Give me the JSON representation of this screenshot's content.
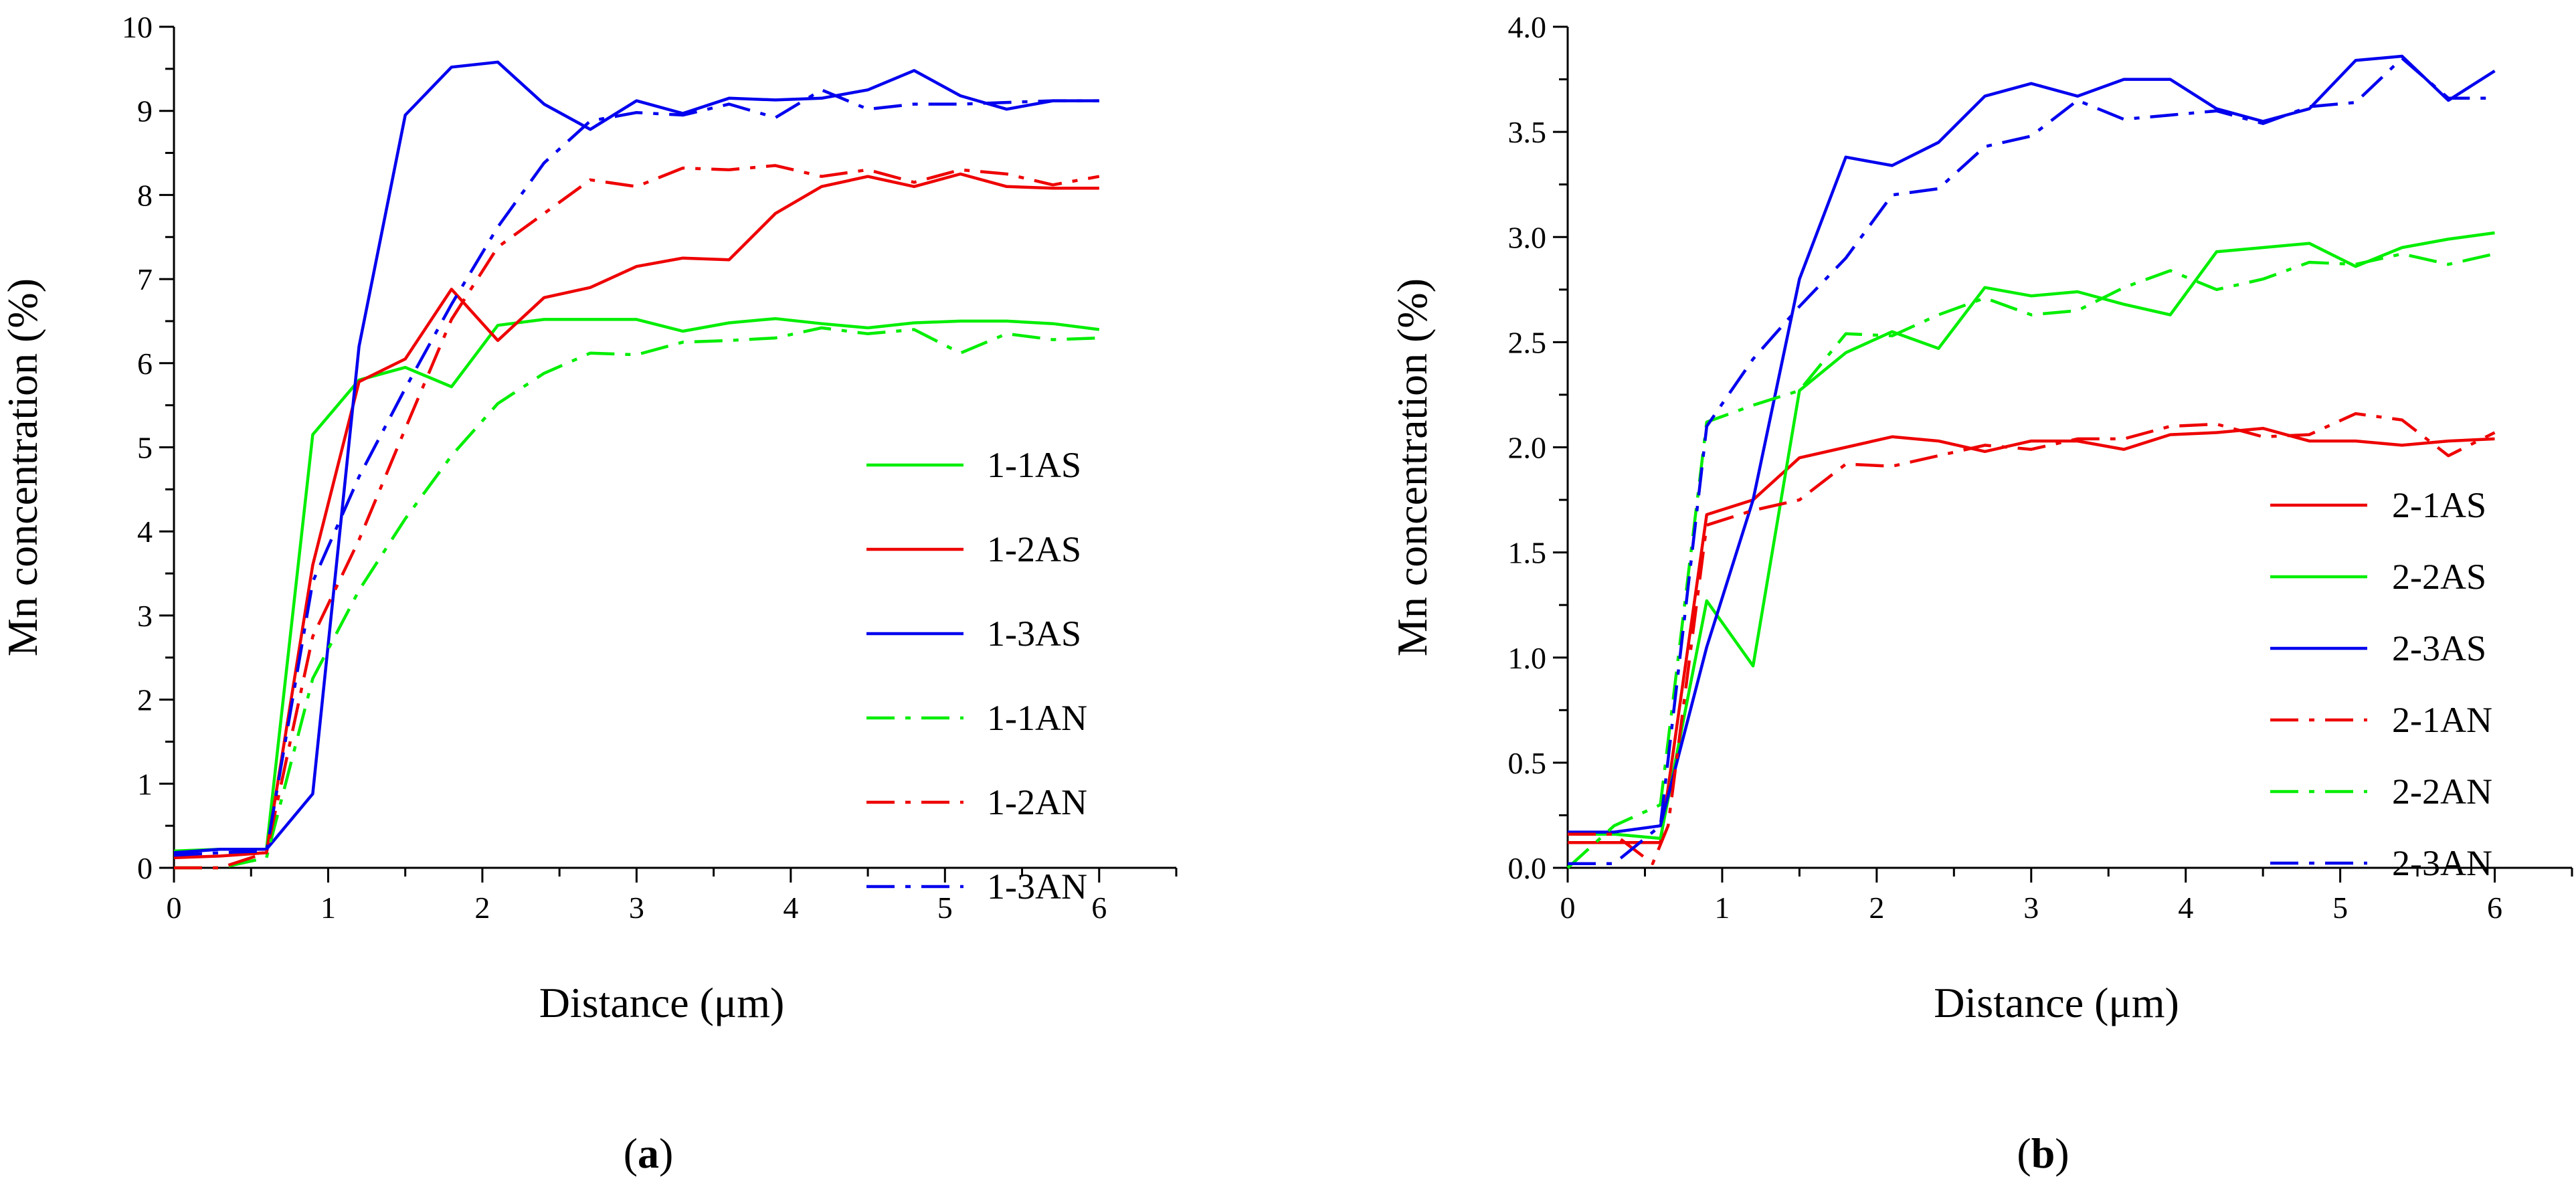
{
  "chart_data": [
    {
      "type": "line",
      "panel_label": {
        "open": "(",
        "letter": "a",
        "close": ")"
      },
      "xlabel": "Distance (μm)",
      "ylabel": "Mn concentration  (%)",
      "xlim": [
        0,
        6.5
      ],
      "ylim": [
        0,
        10
      ],
      "x_major_ticks": [
        0,
        1,
        2,
        3,
        4,
        5,
        6
      ],
      "x_minor_ticks": [
        0.5,
        1.5,
        2.5,
        3.5,
        4.5,
        5.5,
        6.5
      ],
      "y_major_ticks": [
        0,
        1,
        2,
        3,
        4,
        5,
        6,
        7,
        8,
        9,
        10
      ],
      "y_minor_ticks": [
        0.5,
        1.5,
        2.5,
        3.5,
        4.5,
        5.5,
        6.5,
        7.5,
        8.5,
        9.5
      ],
      "grid": false,
      "legend_position": "lower-right",
      "series": [
        {
          "name": "1-1AS",
          "color": "#00ee00",
          "dash": "solid",
          "x": [
            0,
            0.3,
            0.6,
            0.9,
            1.2,
            1.5,
            1.8,
            2.1,
            2.4,
            2.7,
            3.0,
            3.3,
            3.6,
            3.9,
            4.2,
            4.5,
            4.8,
            5.1,
            5.4,
            5.7,
            6.0
          ],
          "values": [
            0.2,
            0.22,
            0.22,
            5.15,
            5.8,
            5.95,
            5.72,
            6.45,
            6.52,
            6.52,
            6.52,
            6.38,
            6.48,
            6.53,
            6.47,
            6.42,
            6.48,
            6.5,
            6.5,
            6.47,
            6.4
          ]
        },
        {
          "name": "1-2AS",
          "color": "#ee0000",
          "dash": "solid",
          "x": [
            0,
            0.3,
            0.6,
            0.9,
            1.2,
            1.5,
            1.8,
            2.1,
            2.4,
            2.7,
            3.0,
            3.3,
            3.6,
            3.9,
            4.2,
            4.5,
            4.8,
            5.1,
            5.4,
            5.7,
            6.0
          ],
          "values": [
            0.12,
            0.14,
            0.18,
            3.6,
            5.78,
            6.05,
            6.88,
            6.27,
            6.78,
            6.9,
            7.15,
            7.25,
            7.23,
            7.78,
            8.1,
            8.22,
            8.1,
            8.25,
            8.1,
            8.08,
            8.08
          ]
        },
        {
          "name": "1-3AS",
          "color": "#0000ee",
          "dash": "solid",
          "x": [
            0,
            0.3,
            0.6,
            0.9,
            1.2,
            1.5,
            1.8,
            2.1,
            2.4,
            2.7,
            3.0,
            3.3,
            3.6,
            3.9,
            4.2,
            4.5,
            4.8,
            5.1,
            5.4,
            5.7,
            6.0
          ],
          "values": [
            0.18,
            0.22,
            0.22,
            0.88,
            6.2,
            8.95,
            9.52,
            9.58,
            9.08,
            8.78,
            9.12,
            8.97,
            9.15,
            9.13,
            9.15,
            9.25,
            9.48,
            9.18,
            9.02,
            9.12,
            9.12
          ]
        },
        {
          "name": "1-1AN",
          "color": "#00ee00",
          "dash": "dashdot",
          "x": [
            0,
            0.3,
            0.6,
            0.9,
            1.2,
            1.5,
            1.8,
            2.1,
            2.4,
            2.7,
            3.0,
            3.3,
            3.6,
            3.9,
            4.2,
            4.5,
            4.8,
            5.1,
            5.4,
            5.7,
            6.0
          ],
          "values": [
            0,
            0,
            0.12,
            2.25,
            3.3,
            4.15,
            4.9,
            5.52,
            5.88,
            6.12,
            6.1,
            6.25,
            6.27,
            6.3,
            6.42,
            6.35,
            6.4,
            6.12,
            6.35,
            6.28,
            6.3
          ]
        },
        {
          "name": "1-2AN",
          "color": "#ee0000",
          "dash": "dashdot",
          "x": [
            0,
            0.3,
            0.6,
            0.9,
            1.2,
            1.5,
            1.8,
            2.1,
            2.4,
            2.7,
            3.0,
            3.3,
            3.6,
            3.9,
            4.2,
            4.5,
            4.8,
            5.1,
            5.4,
            5.7,
            6.0
          ],
          "values": [
            0,
            0,
            0.18,
            2.75,
            3.9,
            5.22,
            6.52,
            7.38,
            7.78,
            8.18,
            8.1,
            8.32,
            8.3,
            8.35,
            8.22,
            8.3,
            8.15,
            8.3,
            8.25,
            8.12,
            8.22
          ]
        },
        {
          "name": "1-3AN",
          "color": "#0000ee",
          "dash": "dashdot",
          "x": [
            0,
            0.3,
            0.6,
            0.9,
            1.2,
            1.5,
            1.8,
            2.1,
            2.4,
            2.7,
            3.0,
            3.3,
            3.6,
            3.9,
            4.2,
            4.5,
            4.8,
            5.1,
            5.4,
            5.7,
            6.0
          ],
          "values": [
            0.15,
            0.18,
            0.2,
            3.4,
            4.65,
            5.7,
            6.7,
            7.62,
            8.38,
            8.88,
            8.98,
            8.95,
            9.08,
            8.92,
            9.25,
            9.02,
            9.08,
            9.08,
            9.1,
            9.12,
            9.12
          ]
        }
      ]
    },
    {
      "type": "line",
      "panel_label": {
        "open": "(",
        "letter": "b",
        "close": ")"
      },
      "xlabel": "Distance (μm)",
      "ylabel": "Mn concentration  (%)",
      "xlim": [
        0,
        6.5
      ],
      "ylim": [
        0,
        4
      ],
      "x_major_ticks": [
        0,
        1,
        2,
        3,
        4,
        5,
        6
      ],
      "x_minor_ticks": [
        0.5,
        1.5,
        2.5,
        3.5,
        4.5,
        5.5,
        6.5
      ],
      "y_major_ticks": [
        0.0,
        0.5,
        1.0,
        1.5,
        2.0,
        2.5,
        3.0,
        3.5,
        4.0
      ],
      "y_tick_labels": [
        "0.0",
        "0.5",
        "1.0",
        "1.5",
        "2.0",
        "2.5",
        "3.0",
        "3.5",
        "4.0"
      ],
      "y_minor_ticks": [
        0.25,
        0.75,
        1.25,
        1.75,
        2.25,
        2.75,
        3.25,
        3.75
      ],
      "grid": false,
      "legend_position": "lower-right",
      "series": [
        {
          "name": "2-1AS",
          "color": "#ee0000",
          "dash": "solid",
          "x": [
            0,
            0.3,
            0.6,
            0.9,
            1.2,
            1.5,
            1.8,
            2.1,
            2.4,
            2.7,
            3.0,
            3.3,
            3.6,
            3.9,
            4.2,
            4.5,
            4.8,
            5.1,
            5.4,
            5.7,
            6.0
          ],
          "values": [
            0.12,
            0.12,
            0.12,
            1.68,
            1.75,
            1.95,
            2.0,
            2.05,
            2.03,
            1.98,
            2.03,
            2.03,
            1.99,
            2.06,
            2.07,
            2.09,
            2.03,
            2.03,
            2.01,
            2.03,
            2.04
          ]
        },
        {
          "name": "2-2AS",
          "color": "#00ee00",
          "dash": "solid",
          "x": [
            0,
            0.3,
            0.6,
            0.9,
            1.2,
            1.5,
            1.8,
            2.1,
            2.4,
            2.7,
            3.0,
            3.3,
            3.6,
            3.9,
            4.2,
            4.5,
            4.8,
            5.1,
            5.4,
            5.7,
            6.0
          ],
          "values": [
            0.16,
            0.16,
            0.14,
            1.27,
            0.96,
            2.27,
            2.45,
            2.55,
            2.47,
            2.76,
            2.72,
            2.74,
            2.68,
            2.63,
            2.93,
            2.95,
            2.97,
            2.86,
            2.95,
            2.99,
            3.02
          ]
        },
        {
          "name": "2-3AS",
          "color": "#0000ee",
          "dash": "solid",
          "x": [
            0,
            0.3,
            0.6,
            0.9,
            1.2,
            1.5,
            1.8,
            2.1,
            2.4,
            2.7,
            3.0,
            3.3,
            3.6,
            3.9,
            4.2,
            4.5,
            4.8,
            5.1,
            5.4,
            5.7,
            6.0
          ],
          "values": [
            0.17,
            0.17,
            0.2,
            1.05,
            1.75,
            2.8,
            3.38,
            3.34,
            3.45,
            3.67,
            3.73,
            3.67,
            3.75,
            3.75,
            3.61,
            3.55,
            3.61,
            3.84,
            3.86,
            3.65,
            3.79
          ]
        },
        {
          "name": "2-1AN",
          "color": "#ee0000",
          "dash": "dashdot",
          "x": [
            0,
            0.3,
            0.55,
            0.65,
            0.9,
            1.2,
            1.5,
            1.8,
            2.1,
            2.4,
            2.7,
            3.0,
            3.3,
            3.6,
            3.9,
            4.2,
            4.5,
            4.8,
            5.1,
            5.4,
            5.7,
            6.0
          ],
          "values": [
            0.16,
            0.16,
            0.02,
            0.2,
            1.63,
            1.7,
            1.75,
            1.92,
            1.91,
            1.96,
            2.01,
            1.99,
            2.04,
            2.04,
            2.1,
            2.11,
            2.05,
            2.06,
            2.16,
            2.13,
            1.96,
            2.07
          ]
        },
        {
          "name": "2-2AN",
          "color": "#00ee00",
          "dash": "dashdot",
          "x": [
            0,
            0.3,
            0.6,
            0.9,
            1.2,
            1.5,
            1.8,
            2.1,
            2.4,
            2.7,
            3.0,
            3.3,
            3.6,
            3.9,
            4.2,
            4.5,
            4.8,
            5.1,
            5.4,
            5.7,
            6.0
          ],
          "values": [
            0.0,
            0.2,
            0.3,
            2.12,
            2.2,
            2.27,
            2.54,
            2.53,
            2.63,
            2.71,
            2.63,
            2.65,
            2.76,
            2.84,
            2.75,
            2.8,
            2.88,
            2.87,
            2.92,
            2.87,
            2.92
          ]
        },
        {
          "name": "2-3AN",
          "color": "#0000ee",
          "dash": "dashdot",
          "x": [
            0,
            0.3,
            0.6,
            0.9,
            1.2,
            1.5,
            1.8,
            2.1,
            2.4,
            2.7,
            3.0,
            3.3,
            3.6,
            3.9,
            4.2,
            4.5,
            4.8,
            5.1,
            5.4,
            5.7,
            6.0
          ],
          "values": [
            0.02,
            0.02,
            0.2,
            2.1,
            2.42,
            2.67,
            2.9,
            3.2,
            3.23,
            3.43,
            3.48,
            3.65,
            3.56,
            3.58,
            3.6,
            3.54,
            3.62,
            3.64,
            3.85,
            3.66,
            3.66
          ]
        }
      ]
    }
  ]
}
